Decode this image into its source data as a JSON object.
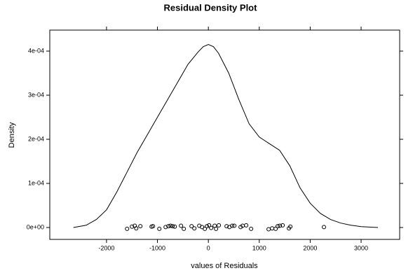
{
  "chart_data": {
    "type": "density",
    "title": "Residual Density Plot",
    "x_label": "values of Residuals",
    "y_label": "Density",
    "x": [
      -2650,
      -2400,
      -2200,
      -2000,
      -1800,
      -1600,
      -1400,
      -1200,
      -1000,
      -800,
      -600,
      -400,
      -200,
      -100,
      0,
      100,
      200,
      400,
      600,
      800,
      1000,
      1200,
      1400,
      1600,
      1800,
      2000,
      2200,
      2400,
      2600,
      2800,
      3000,
      3330
    ],
    "values": [
      0,
      5e-06,
      1.8e-05,
      4e-05,
      8e-05,
      0.000125,
      0.00017,
      0.00021,
      0.00025,
      0.00029,
      0.00033,
      0.00037,
      0.000398,
      0.00041,
      0.000415,
      0.00041,
      0.000395,
      0.00035,
      0.00029,
      0.000235,
      0.000205,
      0.00019,
      0.000175,
      0.00014,
      9e-05,
      5.5e-05,
      3.2e-05,
      1.8e-05,
      1e-05,
      5e-06,
      2e-06,
      0
    ],
    "rug": {
      "x": [
        -1596,
        -1500,
        -1445,
        -1417,
        -1335,
        -1115,
        -1087,
        -963,
        -839,
        -784,
        -743,
        -702,
        -660,
        -537,
        -482,
        -330,
        -275,
        -179,
        -124,
        -69,
        -28,
        14,
        55,
        124,
        151,
        206,
        358,
        413,
        468,
        509,
        633,
        674,
        743,
        839,
        1183,
        1252,
        1321,
        1362,
        1404,
        1459,
        1582,
        1610,
        2270
      ],
      "values": [
        -3e-06,
        2e-06,
        4e-06,
        -2e-06,
        3e-06,
        2e-06,
        3e-06,
        -3e-06,
        1e-06,
        3e-06,
        4e-06,
        3e-06,
        2e-06,
        4e-06,
        -3e-06,
        3e-06,
        -2e-06,
        4e-06,
        1e-06,
        -3e-06,
        3e-06,
        5e-06,
        -1e-06,
        4e-06,
        -3e-06,
        5e-06,
        3e-06,
        1e-06,
        4e-06,
        4e-06,
        1e-06,
        4e-06,
        5e-06,
        -3e-06,
        -4e-06,
        -2e-06,
        -3e-06,
        3e-06,
        4e-06,
        5e-06,
        -2e-06,
        2e-06,
        1e-06
      ]
    },
    "color": "#000000",
    "xlim": [
      -3114,
      3757
    ],
    "ylim": [
      -2.7e-05,
      0.0004476
    ],
    "xticks": [
      -2000,
      -1000,
      0,
      1000,
      2000,
      3000
    ],
    "yticks": [
      {
        "value": 0,
        "label": "0e+00"
      },
      {
        "value": 0.0001,
        "label": "1e-04"
      },
      {
        "value": 0.0002,
        "label": "2e-04"
      },
      {
        "value": 0.0003,
        "label": "3e-04"
      },
      {
        "value": 0.0004,
        "label": "4e-04"
      }
    ]
  }
}
